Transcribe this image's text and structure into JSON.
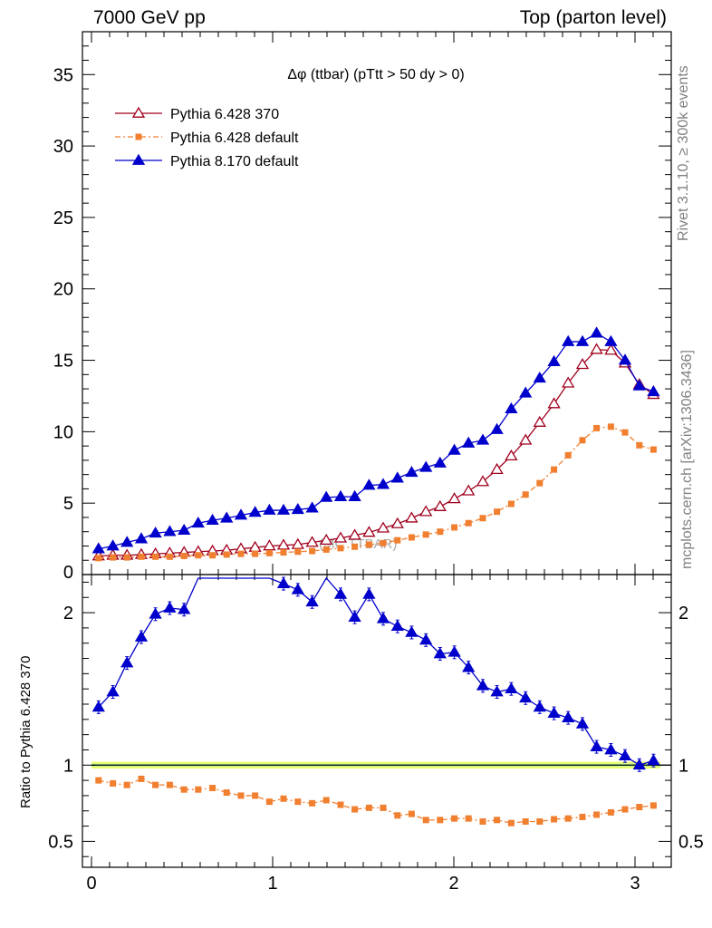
{
  "header": {
    "left": "7000 GeV pp",
    "right": "Top (parton level)"
  },
  "side_labels": {
    "rivet": "Rivet 3.1.10, ≥ 300k events",
    "mcplots": "mcplots.cern.ch [arXiv:1306.3436]"
  },
  "watermark": "(MC TTBAR)",
  "colors": {
    "series1": "#a0001e",
    "series2": "#f07f30",
    "series3": "#0000cc",
    "band_outer": "#eeff66",
    "band_inner": "#b9f5a0"
  },
  "chart_data": [
    {
      "type": "line",
      "title": "Δφ (ttbar) (pTtt > 50 dy > 0)",
      "xlim": [
        -0.05,
        3.2
      ],
      "ylim": [
        0,
        38
      ],
      "yticks": [
        0,
        5,
        10,
        15,
        20,
        25,
        30,
        35
      ],
      "x": [
        0.039,
        0.118,
        0.196,
        0.275,
        0.353,
        0.432,
        0.511,
        0.589,
        0.668,
        0.746,
        0.825,
        0.903,
        0.982,
        1.06,
        1.139,
        1.218,
        1.296,
        1.375,
        1.453,
        1.532,
        1.61,
        1.689,
        1.767,
        1.846,
        1.924,
        2.003,
        2.081,
        2.16,
        2.238,
        2.317,
        2.396,
        2.474,
        2.553,
        2.631,
        2.71,
        2.788,
        2.867,
        2.945,
        3.024,
        3.102
      ],
      "series": [
        {
          "name": "Pythia 6.428 370",
          "marker": "open-triangle",
          "values": [
            1.3,
            1.35,
            1.35,
            1.4,
            1.45,
            1.5,
            1.55,
            1.6,
            1.65,
            1.7,
            1.8,
            1.9,
            2.0,
            2.05,
            2.1,
            2.25,
            2.4,
            2.55,
            2.75,
            2.95,
            3.25,
            3.55,
            3.95,
            4.4,
            4.75,
            5.3,
            5.85,
            6.5,
            7.35,
            8.3,
            9.4,
            10.65,
            11.95,
            13.4,
            14.7,
            15.75,
            15.7,
            14.8,
            13.3,
            12.6
          ]
        },
        {
          "name": "Pythia 6.428 default",
          "marker": "filled-square",
          "values": [
            1.15,
            1.2,
            1.2,
            1.25,
            1.25,
            1.25,
            1.3,
            1.35,
            1.35,
            1.4,
            1.45,
            1.45,
            1.5,
            1.55,
            1.6,
            1.65,
            1.75,
            1.85,
            1.95,
            2.1,
            2.2,
            2.4,
            2.6,
            2.8,
            3.0,
            3.3,
            3.6,
            3.95,
            4.4,
            4.95,
            5.6,
            6.4,
            7.35,
            8.35,
            9.4,
            10.25,
            10.35,
            9.95,
            9.05,
            8.75
          ]
        },
        {
          "name": "Pythia 8.170 default",
          "marker": "filled-triangle",
          "values": [
            1.8,
            2.0,
            2.25,
            2.5,
            2.9,
            3.0,
            3.1,
            3.6,
            3.8,
            3.95,
            4.15,
            4.35,
            4.5,
            4.5,
            4.55,
            4.65,
            5.4,
            5.45,
            5.45,
            6.25,
            6.3,
            6.75,
            7.15,
            7.5,
            7.8,
            8.7,
            9.2,
            9.4,
            10.15,
            11.6,
            12.7,
            13.75,
            14.9,
            16.3,
            16.3,
            16.9,
            16.3,
            15.0,
            13.2,
            12.8
          ]
        }
      ]
    },
    {
      "type": "line",
      "ylabel": "Ratio to Pythia 6.428 370",
      "xlim": [
        -0.05,
        3.2
      ],
      "ylim": [
        0.33,
        2.25
      ],
      "yticks": [
        0.5,
        1,
        2
      ],
      "xticks": [
        0,
        1,
        2,
        3
      ],
      "x": [
        0.039,
        0.118,
        0.196,
        0.275,
        0.353,
        0.432,
        0.511,
        0.589,
        0.668,
        0.746,
        0.825,
        0.903,
        0.982,
        1.06,
        1.139,
        1.218,
        1.296,
        1.375,
        1.453,
        1.532,
        1.61,
        1.689,
        1.767,
        1.846,
        1.924,
        2.003,
        2.081,
        2.16,
        2.238,
        2.317,
        2.396,
        2.474,
        2.553,
        2.631,
        2.71,
        2.788,
        2.867,
        2.945,
        3.024,
        3.102
      ],
      "series": [
        {
          "name": "Pythia 6.428 default",
          "marker": "filled-square",
          "values": [
            0.9,
            0.88,
            0.87,
            0.91,
            0.87,
            0.87,
            0.84,
            0.84,
            0.85,
            0.82,
            0.8,
            0.8,
            0.76,
            0.78,
            0.76,
            0.75,
            0.77,
            0.74,
            0.71,
            0.72,
            0.72,
            0.67,
            0.68,
            0.64,
            0.64,
            0.65,
            0.65,
            0.63,
            0.64,
            0.62,
            0.63,
            0.63,
            0.645,
            0.65,
            0.66,
            0.675,
            0.69,
            0.71,
            0.725,
            0.735
          ]
        },
        {
          "name": "Pythia 8.170 default",
          "marker": "filled-triangle",
          "values": [
            1.38,
            1.48,
            1.67,
            1.84,
            1.99,
            2.03,
            2.02,
            2.25,
            2.3,
            2.32,
            2.3,
            2.3,
            2.25,
            2.19,
            2.15,
            2.07,
            2.24,
            2.12,
            1.97,
            2.12,
            1.96,
            1.91,
            1.87,
            1.82,
            1.73,
            1.74,
            1.64,
            1.52,
            1.48,
            1.5,
            1.44,
            1.38,
            1.34,
            1.31,
            1.27,
            1.12,
            1.1,
            1.06,
            1.0,
            1.03
          ]
        }
      ]
    }
  ]
}
